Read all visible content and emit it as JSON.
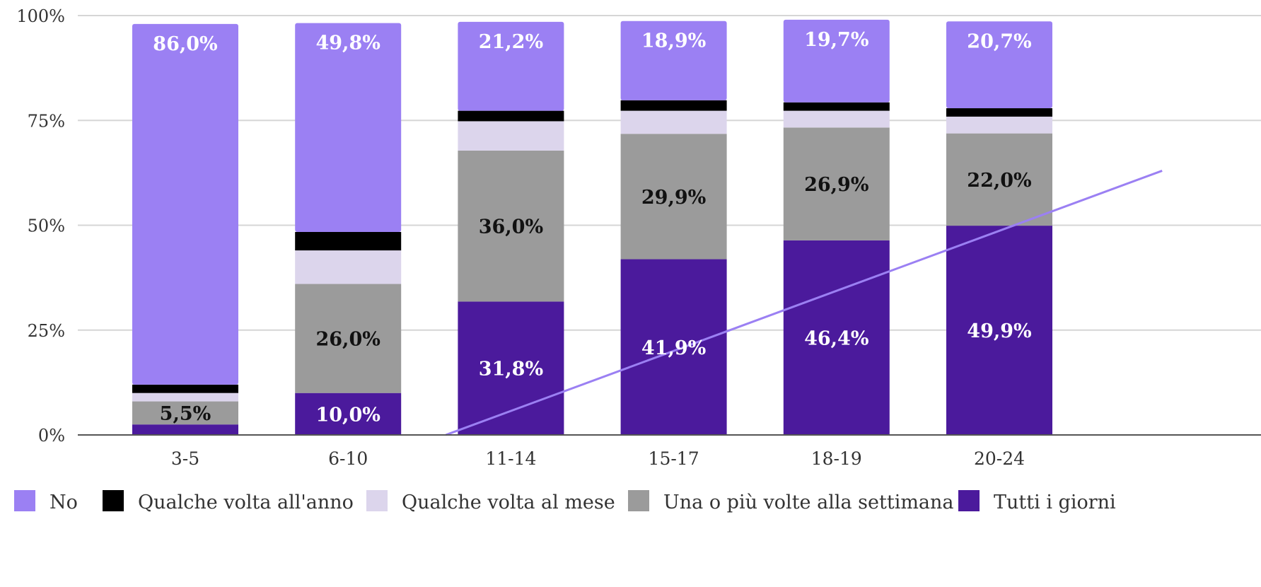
{
  "chart_data": {
    "type": "bar",
    "stacked": true,
    "title": "",
    "xlabel": "",
    "ylabel": "",
    "ylim": [
      0,
      100
    ],
    "y_ticks": [
      "0%",
      "25%",
      "50%",
      "75%",
      "100%"
    ],
    "grid": true,
    "legend_position": "bottom",
    "categories": [
      "3-5",
      "6-10",
      "11-14",
      "15-17",
      "18-19",
      "20-24"
    ],
    "series": [
      {
        "name": "Tutti i giorni",
        "color": "#4b1a9c",
        "label_color": "#ffffff",
        "values": [
          2.5,
          10.0,
          31.8,
          41.9,
          46.4,
          49.9
        ],
        "labels": [
          "",
          "10,0%",
          "31,8%",
          "41,9%",
          "46,4%",
          "49,9%"
        ]
      },
      {
        "name": "Una o più volte alla settimana",
        "color": "#9b9b9b",
        "label_color": "#111111",
        "values": [
          5.5,
          26.0,
          36.0,
          29.9,
          26.9,
          22.0
        ],
        "labels": [
          "5,5%",
          "26,0%",
          "36,0%",
          "29,9%",
          "26,9%",
          "22,0%"
        ]
      },
      {
        "name": "Qualche volta al mese",
        "color": "#dcd5ec",
        "label_color": "#111111",
        "values": [
          2.0,
          8.0,
          7.0,
          5.5,
          4.0,
          4.0
        ],
        "labels": [
          "",
          "",
          "",
          "",
          "",
          ""
        ]
      },
      {
        "name": "Qualche volta all'anno",
        "color": "#000000",
        "label_color": "#ffffff",
        "values": [
          2.0,
          4.4,
          2.5,
          2.5,
          2.0,
          2.0
        ],
        "labels": [
          "",
          "",
          "",
          "",
          "",
          ""
        ]
      },
      {
        "name": "No",
        "color": "#9b80f3",
        "label_color": "#ffffff",
        "values": [
          86.0,
          49.8,
          21.2,
          18.9,
          19.7,
          20.7
        ],
        "labels": [
          "86,0%",
          "49,8%",
          "21,2%",
          "18,9%",
          "19,7%",
          "20,7%"
        ]
      }
    ],
    "trendline": {
      "color": "#9b80f3",
      "x_start": 2.6,
      "y_start": 0,
      "x_end": 7.0,
      "y_end": 63
    }
  },
  "legend": {
    "items": [
      {
        "label": "No",
        "color": "#9b80f3"
      },
      {
        "label": "Qualche volta all'anno",
        "color": "#000000"
      },
      {
        "label": "Qualche volta al mese",
        "color": "#dcd5ec"
      },
      {
        "label": "Una o più volte alla settimana",
        "color": "#9b9b9b"
      },
      {
        "label": "Tutti i giorni",
        "color": "#4b1a9c"
      }
    ]
  }
}
